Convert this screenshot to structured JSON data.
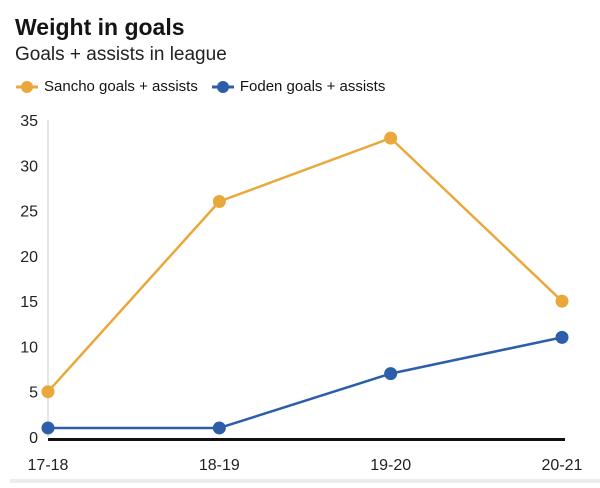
{
  "header": {
    "title": "Weight in goals",
    "subtitle": "Goals + assists in league"
  },
  "chart_data": {
    "type": "line",
    "title": "Weight in goals",
    "subtitle": "Goals + assists in league",
    "categories": [
      "17-18",
      "18-19",
      "19-20",
      "20-21"
    ],
    "series": [
      {
        "name": "Sancho goals + assists",
        "color": "#e9a83b",
        "values": [
          5,
          26,
          33,
          15
        ]
      },
      {
        "name": "Foden goals + assists",
        "color": "#2c5ea9",
        "values": [
          1,
          1,
          7,
          11
        ]
      }
    ],
    "xlabel": "",
    "ylabel": "",
    "ylim": [
      0,
      35
    ],
    "ytick_step": 5,
    "grid": false,
    "legend_position": "top",
    "colors": {
      "y_axis_line": "#cccccc",
      "x_axis_line": "#111111",
      "text": "#222222"
    }
  }
}
